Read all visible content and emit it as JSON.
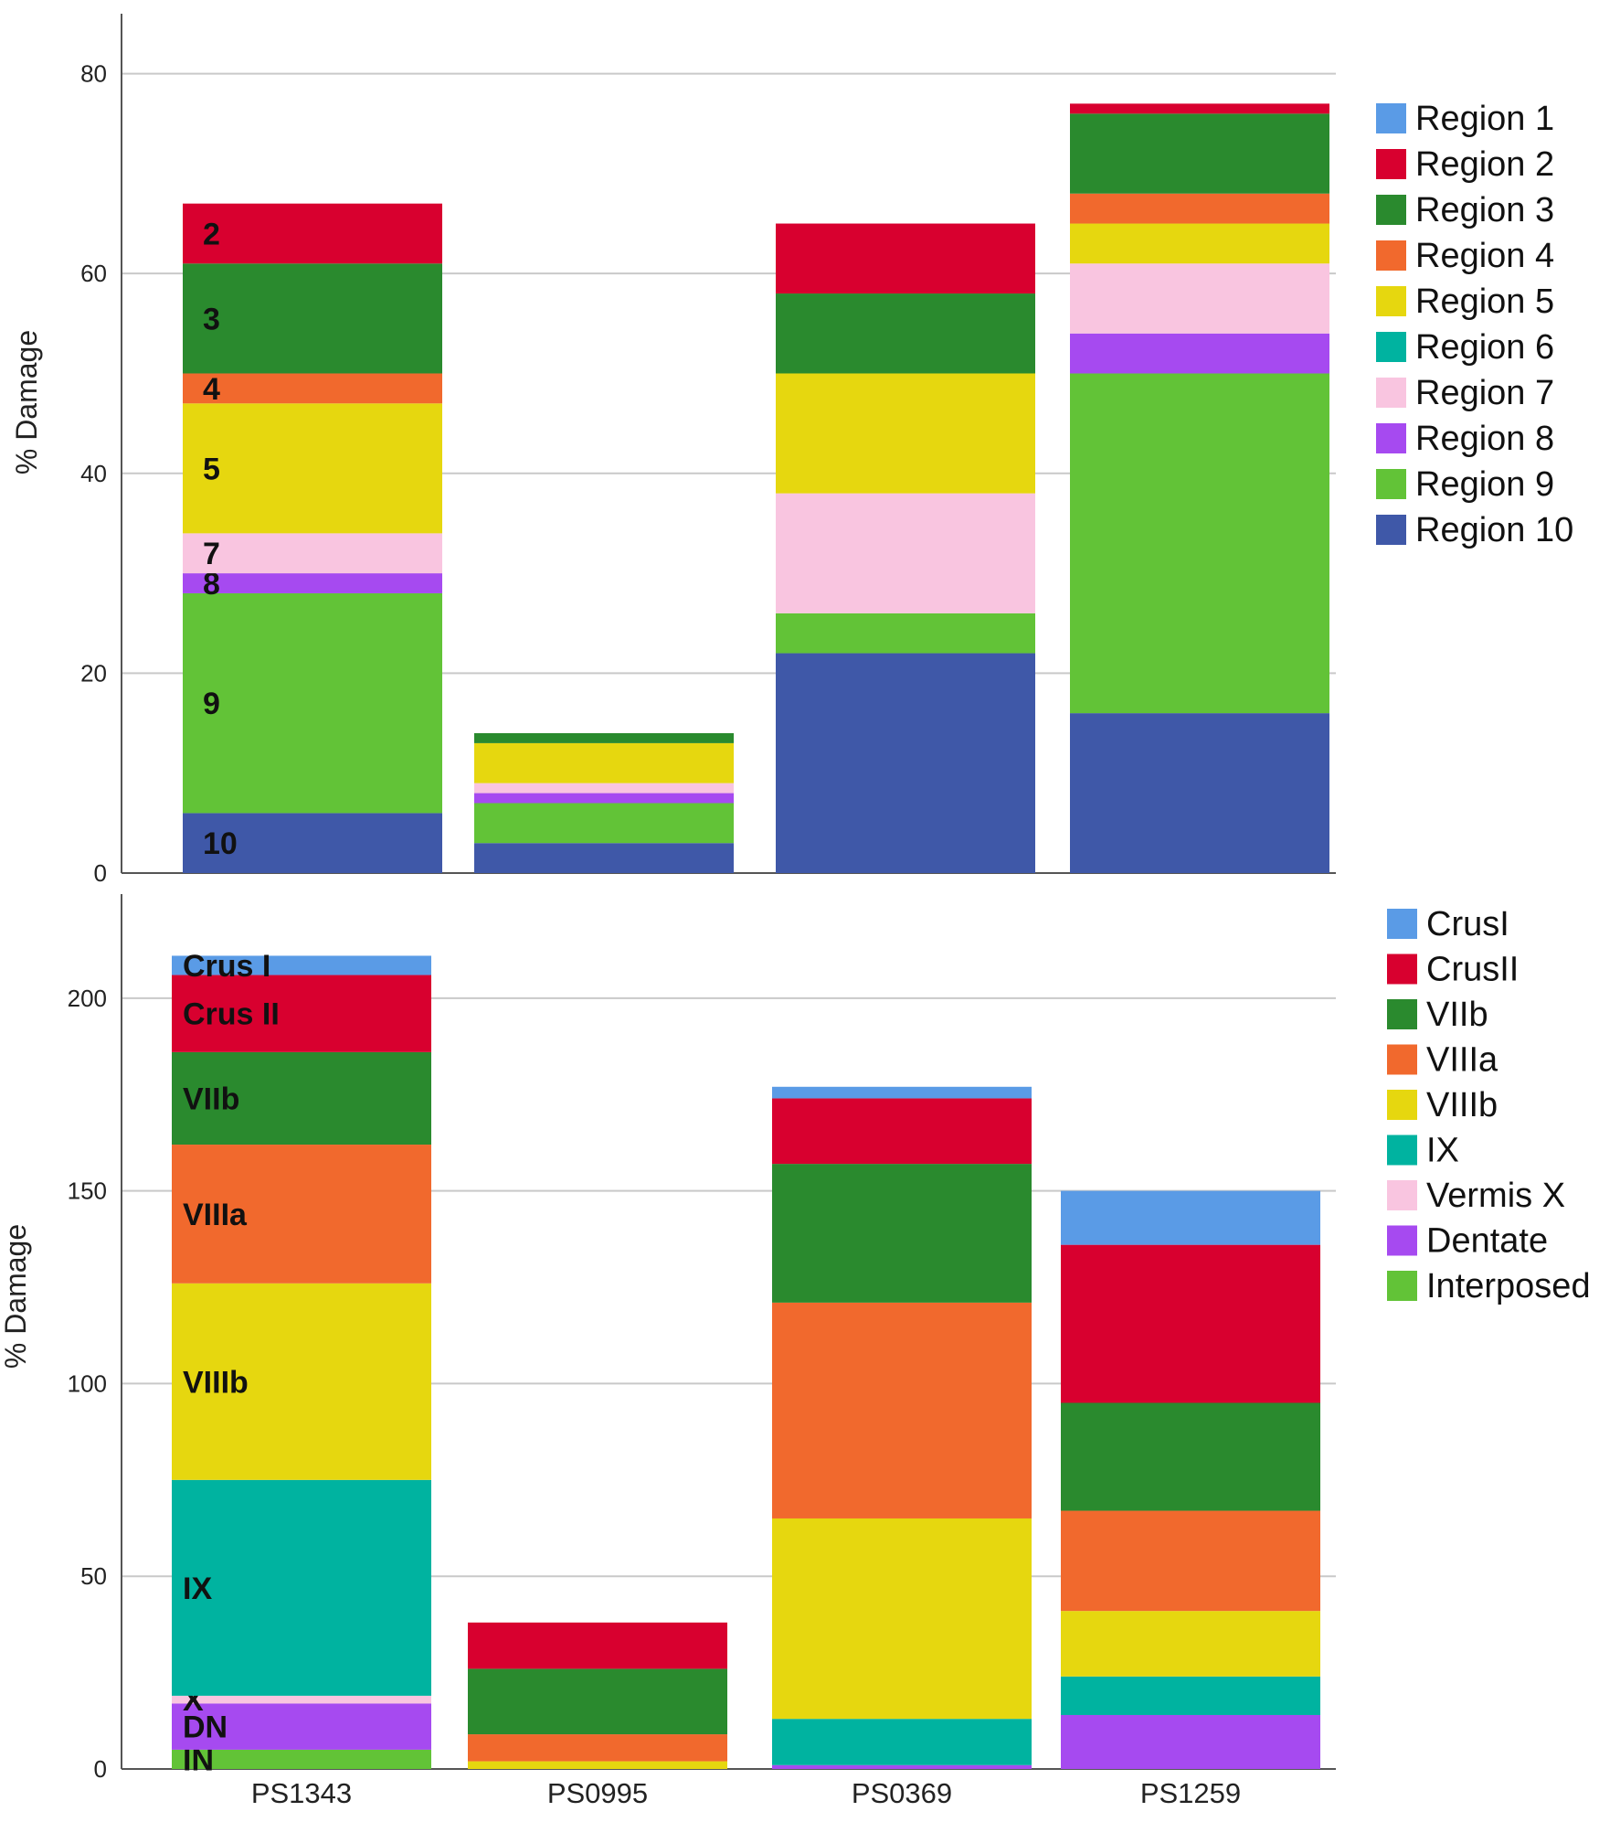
{
  "chart_data": [
    {
      "type": "bar",
      "stacked": true,
      "title": "",
      "xlabel": "",
      "ylabel": "% Damage",
      "ylim": [
        0,
        86
      ],
      "yticks": [
        0,
        20,
        40,
        60,
        80
      ],
      "grid": true,
      "legend_position": "right",
      "categories": [
        "PS1343",
        "PS0995",
        "PS0369",
        "PS1259"
      ],
      "series": [
        {
          "name": "Region 10",
          "color": "#3f58a8",
          "values": [
            6,
            3,
            22,
            16
          ],
          "seg_label": "10"
        },
        {
          "name": "Region 9",
          "color": "#62c337",
          "values": [
            22,
            4,
            4,
            34
          ],
          "seg_label": "9"
        },
        {
          "name": "Region 8",
          "color": "#a64af0",
          "values": [
            2,
            1,
            0,
            4
          ],
          "seg_label": "8"
        },
        {
          "name": "Region 7",
          "color": "#f9c5e0",
          "values": [
            4,
            1,
            12,
            7
          ],
          "seg_label": "7"
        },
        {
          "name": "Region 6",
          "color": "#00b3a0",
          "values": [
            0,
            0,
            0,
            0
          ],
          "seg_label": ""
        },
        {
          "name": "Region 5",
          "color": "#e6d70f",
          "values": [
            13,
            4,
            12,
            4
          ],
          "seg_label": "5"
        },
        {
          "name": "Region 4",
          "color": "#f1692d",
          "values": [
            3,
            0,
            0,
            3
          ],
          "seg_label": "4"
        },
        {
          "name": "Region 3",
          "color": "#2a8a2e",
          "values": [
            11,
            1,
            8,
            8
          ],
          "seg_label": "3"
        },
        {
          "name": "Region 2",
          "color": "#d8002f",
          "values": [
            6,
            0,
            7,
            1
          ],
          "seg_label": "2"
        },
        {
          "name": "Region 1",
          "color": "#5a9be6",
          "values": [
            0,
            0,
            0,
            0
          ],
          "seg_label": ""
        }
      ],
      "legend": [
        "Region 1",
        "Region 2",
        "Region 3",
        "Region 4",
        "Region 5",
        "Region 6",
        "Region 7",
        "Region 8",
        "Region 9",
        "Region 10"
      ]
    },
    {
      "type": "bar",
      "stacked": true,
      "title": "",
      "xlabel": "",
      "ylabel": "% Damage",
      "ylim": [
        0,
        227
      ],
      "yticks": [
        0,
        50,
        100,
        150,
        200
      ],
      "grid": true,
      "legend_position": "right",
      "categories": [
        "PS1343",
        "PS0995",
        "PS0369",
        "PS1259"
      ],
      "series": [
        {
          "name": "Interposed",
          "color": "#62c337",
          "values": [
            5,
            0,
            0,
            0
          ],
          "seg_label": "IN"
        },
        {
          "name": "Dentate",
          "color": "#a64af0",
          "values": [
            12,
            0,
            1,
            14
          ],
          "seg_label": "DN"
        },
        {
          "name": "Vermis X",
          "color": "#f9c5e0",
          "values": [
            2,
            0,
            0,
            0
          ],
          "seg_label": "X"
        },
        {
          "name": "IX",
          "color": "#00b3a0",
          "values": [
            56,
            0,
            12,
            10
          ],
          "seg_label": "IX"
        },
        {
          "name": "VIIIb",
          "color": "#e6d70f",
          "values": [
            51,
            2,
            52,
            17
          ],
          "seg_label": "VIIIb"
        },
        {
          "name": "VIIIa",
          "color": "#f1692d",
          "values": [
            36,
            7,
            56,
            26
          ],
          "seg_label": "VIIIa"
        },
        {
          "name": "VIIb",
          "color": "#2a8a2e",
          "values": [
            24,
            17,
            36,
            28
          ],
          "seg_label": "VIIb"
        },
        {
          "name": "CrusII",
          "color": "#d8002f",
          "values": [
            20,
            12,
            17,
            41
          ],
          "seg_label": "Crus II"
        },
        {
          "name": "CrusI",
          "color": "#5a9be6",
          "values": [
            5,
            0,
            3,
            14
          ],
          "seg_label": "Crus I"
        }
      ],
      "legend": [
        "CrusI",
        "CrusII",
        "VIIb",
        "VIIIa",
        "VIIIb",
        "IX",
        "Vermis X",
        "Dentate",
        "Interposed"
      ]
    }
  ]
}
